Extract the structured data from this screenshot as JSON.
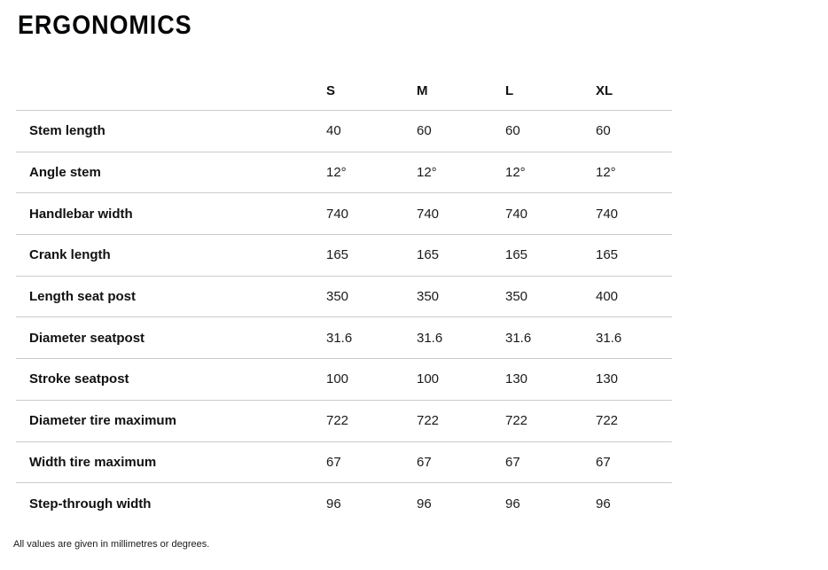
{
  "page": {
    "title": "ERGONOMICS",
    "footnote": "All values are given in millimetres or degrees."
  },
  "table": {
    "columns": [
      "S",
      "M",
      "L",
      "XL"
    ],
    "rows": [
      {
        "label": "Stem length",
        "values": [
          "40",
          "60",
          "60",
          "60"
        ]
      },
      {
        "label": "Angle stem",
        "values": [
          "12°",
          "12°",
          "12°",
          "12°"
        ]
      },
      {
        "label": "Handlebar width",
        "values": [
          "740",
          "740",
          "740",
          "740"
        ]
      },
      {
        "label": "Crank length",
        "values": [
          "165",
          "165",
          "165",
          "165"
        ]
      },
      {
        "label": "Length seat post",
        "values": [
          "350",
          "350",
          "350",
          "400"
        ]
      },
      {
        "label": "Diameter seatpost",
        "values": [
          "31.6",
          "31.6",
          "31.6",
          "31.6"
        ]
      },
      {
        "label": "Stroke seatpost",
        "values": [
          "100",
          "100",
          "130",
          "130"
        ]
      },
      {
        "label": "Diameter tire maximum",
        "values": [
          "722",
          "722",
          "722",
          "722"
        ]
      },
      {
        "label": "Width tire maximum",
        "values": [
          "67",
          "67",
          "67",
          "67"
        ]
      },
      {
        "label": "Step-through width",
        "values": [
          "96",
          "96",
          "96",
          "96"
        ]
      }
    ]
  },
  "colors": {
    "text": "#111111",
    "divider": "#cbcbcb",
    "background": "#ffffff"
  }
}
